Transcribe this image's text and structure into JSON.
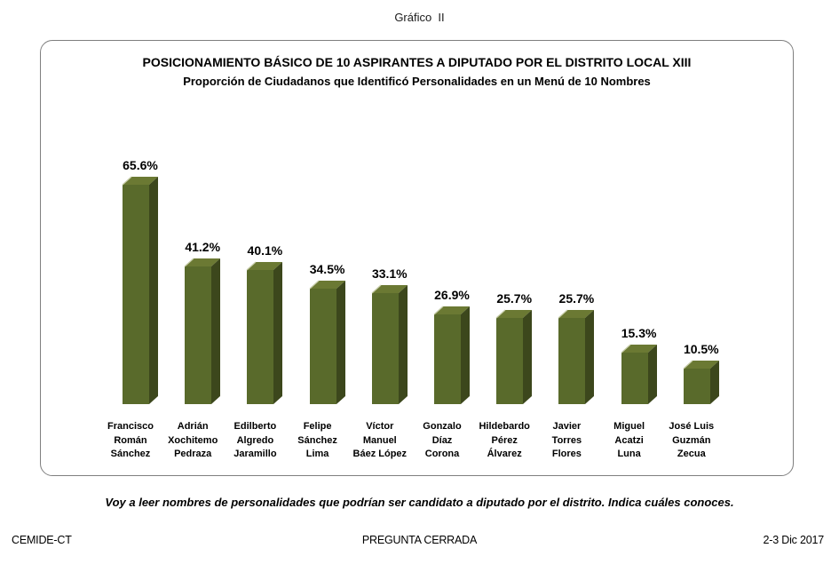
{
  "page": {
    "header": "Gráfico  II",
    "footer_note": "Voy a leer nombres de personalidades que podrían ser candidato a diputado por el distrito. Indica cuáles conoces.",
    "footer_left": "CEMIDE-CT",
    "footer_center": "PREGUNTA CERRADA",
    "footer_right": "2-3 Dic 2017"
  },
  "chart_data": {
    "type": "bar",
    "title": "POSICIONAMIENTO BÁSICO DE 10 ASPIRANTES A DIPUTADO POR EL DISTRITO LOCAL XIII",
    "subtitle": "Proporción de Ciudadanos que Identificó Personalidades en un Menú de 10 Nombres",
    "categories": [
      "Francisco Román Sánchez",
      "Adrián Xochitemo Pedraza",
      "Edilberto Algredo Jaramillo",
      "Felipe Sánchez Lima",
      "Víctor Manuel Báez López",
      "Gonzalo Díaz Corona",
      "Hildebardo Pérez Álvarez",
      "Javier Torres Flores",
      "Miguel Acatzi Luna",
      "José Luis Guzmán Zecua"
    ],
    "category_lines": [
      [
        "Francisco",
        "Román",
        "Sánchez"
      ],
      [
        "Adrián",
        "Xochitemo",
        "Pedraza"
      ],
      [
        "Edilberto",
        "Algredo",
        "Jaramillo"
      ],
      [
        "Felipe",
        "Sánchez",
        "Lima"
      ],
      [
        "Víctor",
        "Manuel",
        "Báez López"
      ],
      [
        "Gonzalo",
        "Díaz",
        "Corona"
      ],
      [
        "Hildebardo",
        "Pérez",
        "Álvarez"
      ],
      [
        "Javier",
        "Torres",
        "Flores"
      ],
      [
        "Miguel",
        "Acatzi",
        "Luna"
      ],
      [
        "José Luis",
        "Guzmán",
        "Zecua"
      ]
    ],
    "values": [
      65.6,
      41.2,
      40.1,
      34.5,
      33.1,
      26.9,
      25.7,
      25.7,
      15.3,
      10.5
    ],
    "value_labels": [
      "65.6%",
      "41.2%",
      "40.1%",
      "34.5%",
      "33.1%",
      "26.9%",
      "25.7%",
      "25.7%",
      "15.3%",
      "10.5%"
    ],
    "xlabel": "",
    "ylabel": "",
    "ylim": [
      0,
      70
    ],
    "grid": false,
    "legend": false,
    "bar_style": "3d",
    "colors": {
      "bar_front": "#596a2b",
      "bar_top": "#6b7933",
      "bar_side": "#3c471c",
      "bar_top_highlight": "#c7cdaa",
      "frame_border": "#7f7f7f",
      "text": "#000000"
    }
  }
}
